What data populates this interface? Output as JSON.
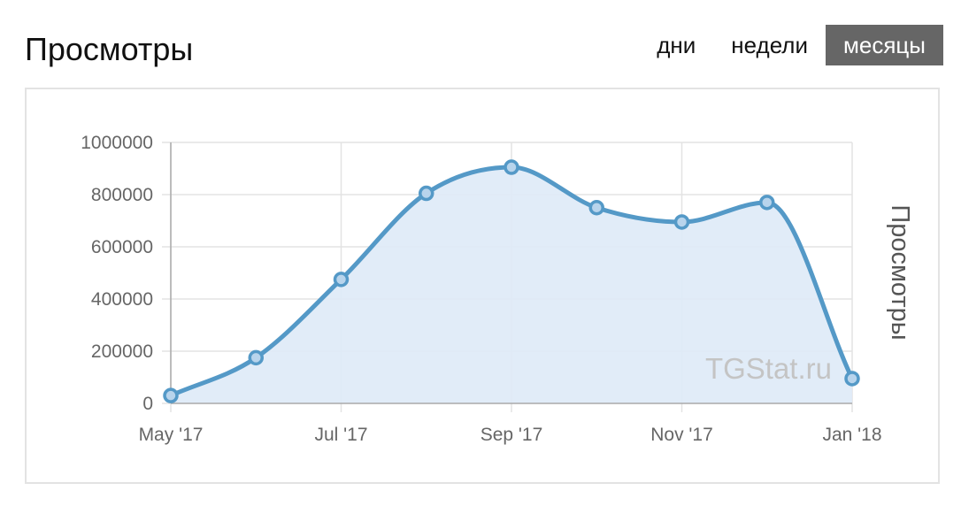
{
  "header": {
    "title": "Просмотры"
  },
  "range_tabs": [
    {
      "label": "дни",
      "active": false
    },
    {
      "label": "недели",
      "active": false
    },
    {
      "label": "месяцы",
      "active": true
    }
  ],
  "chart_data": {
    "type": "area",
    "title": "",
    "xlabel": "",
    "ylabel": "Просмотры",
    "ylabel_position": "right",
    "watermark": "TGStat.ru",
    "x": [
      "2017-05",
      "2017-06",
      "2017-07",
      "2017-08",
      "2017-09",
      "2017-10",
      "2017-11",
      "2017-12",
      "2018-01"
    ],
    "x_tick_labels": [
      "May '17",
      "Jul '17",
      "Sep '17",
      "Nov '17",
      "Jan '18"
    ],
    "x_tick_positions": [
      "2017-05",
      "2017-07",
      "2017-09",
      "2017-11",
      "2018-01"
    ],
    "y_ticks": [
      "0",
      "200000",
      "400000",
      "600000",
      "800000",
      "1000000"
    ],
    "ylim": [
      0,
      1000000
    ],
    "grid": true,
    "legend": false,
    "series": [
      {
        "values": [
          30000,
          175000,
          475000,
          805000,
          905000,
          750000,
          695000,
          770000,
          95000
        ]
      }
    ],
    "colors": {
      "line": "#5499c7",
      "fill": "#deeaf7",
      "marker_fill": "#b8d4ec",
      "grid": "#e3e3e3",
      "axis": "#aaaaaa"
    }
  }
}
